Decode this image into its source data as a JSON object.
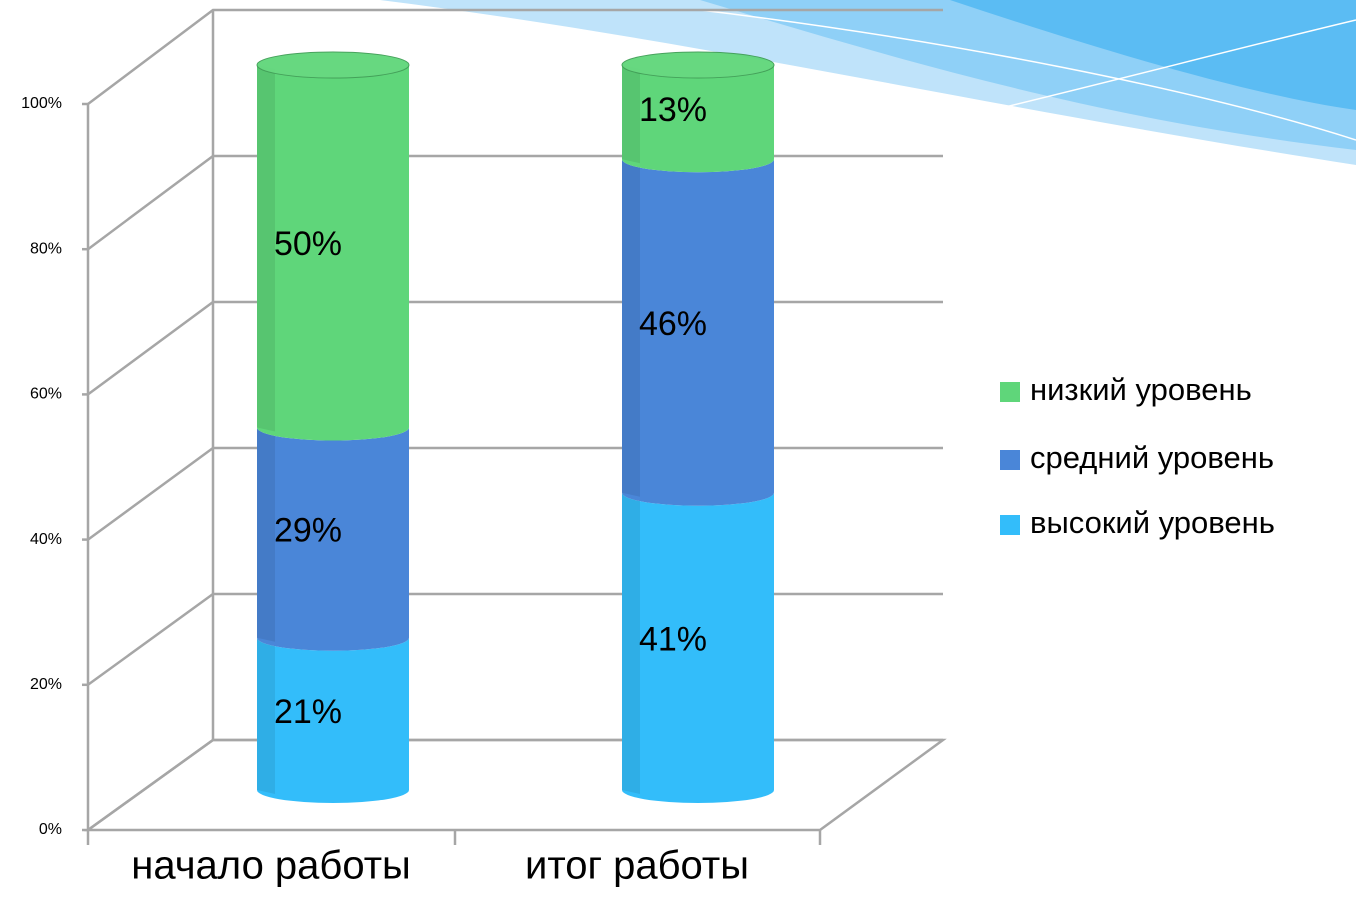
{
  "chart_data": {
    "type": "bar",
    "stacked": true,
    "categories": [
      "начало работы",
      "итог работы"
    ],
    "series": [
      {
        "name": "высокий уровень",
        "color": "#33bdfa",
        "values": [
          21,
          41
        ],
        "value_labels": [
          "21%",
          "41%"
        ]
      },
      {
        "name": "средний уровень",
        "color": "#4a86d8",
        "values": [
          29,
          46
        ],
        "value_labels": [
          "29%",
          "46%"
        ]
      },
      {
        "name": "низкий уровень",
        "color": "#5fd67a",
        "values": [
          50,
          13
        ],
        "value_labels": [
          "50%",
          "13%"
        ]
      }
    ],
    "ylim": [
      0,
      100
    ],
    "yticks": [
      {
        "value": 0,
        "label": "0%"
      },
      {
        "value": 20,
        "label": "20%"
      },
      {
        "value": 40,
        "label": "40%"
      },
      {
        "value": 60,
        "label": "60%"
      },
      {
        "value": 80,
        "label": "80%"
      },
      {
        "value": 100,
        "label": "100%"
      }
    ],
    "grid": true,
    "legend": "right"
  }
}
